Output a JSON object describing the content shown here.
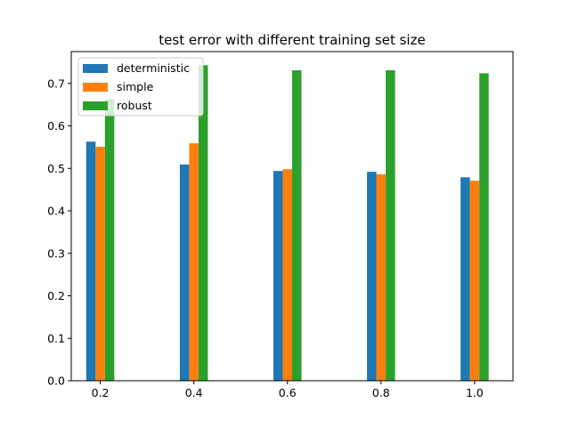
{
  "chart_data": {
    "type": "bar",
    "title": "test error with different training set size",
    "xlabel": "",
    "ylabel": "",
    "categories": [
      "0.2",
      "0.4",
      "0.6",
      "0.8",
      "1.0"
    ],
    "x": [
      0.2,
      0.4,
      0.6,
      0.8,
      1.0
    ],
    "xlim": [
      0.138,
      1.082
    ],
    "ylim": [
      0,
      0.775
    ],
    "yticks": [
      0.0,
      0.1,
      0.2,
      0.3,
      0.4,
      0.5,
      0.6,
      0.7
    ],
    "ytick_labels": [
      "0.0",
      "0.1",
      "0.2",
      "0.3",
      "0.4",
      "0.5",
      "0.6",
      "0.7"
    ],
    "grid": false,
    "legend_position": "top-left",
    "series": [
      {
        "name": "deterministic",
        "color": "#1f77b4",
        "values": [
          0.563,
          0.509,
          0.494,
          0.492,
          0.479
        ]
      },
      {
        "name": "simple",
        "color": "#ff7f0e",
        "values": [
          0.551,
          0.559,
          0.498,
          0.486,
          0.471
        ]
      },
      {
        "name": "robust",
        "color": "#2ca02c",
        "values": [
          0.663,
          0.743,
          0.731,
          0.731,
          0.724
        ]
      }
    ]
  }
}
